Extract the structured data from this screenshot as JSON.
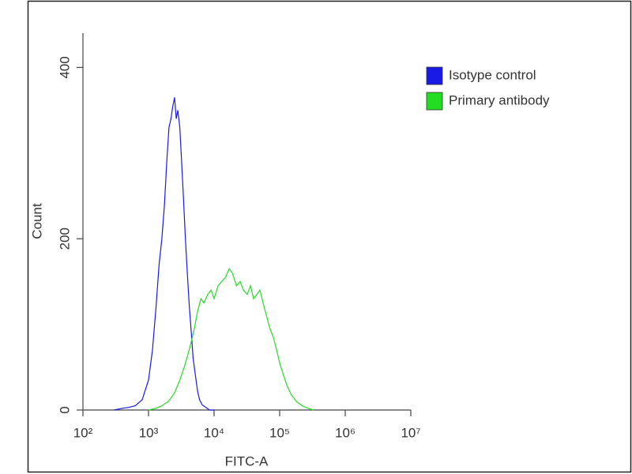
{
  "chart_data": {
    "type": "line",
    "xlabel": "FITC-A",
    "ylabel": "Count",
    "xscale": "log",
    "xlim": [
      100,
      10000000
    ],
    "xticks": [
      {
        "value": 100,
        "label": "10²"
      },
      {
        "value": 1000,
        "label": "10³"
      },
      {
        "value": 10000,
        "label": "10⁴"
      },
      {
        "value": 100000,
        "label": "10⁵"
      },
      {
        "value": 1000000,
        "label": "10⁶"
      },
      {
        "value": 10000000,
        "label": "10⁷"
      }
    ],
    "ylim": [
      0,
      440
    ],
    "yticks": [
      0,
      200,
      400
    ],
    "legend": "upper right",
    "series": [
      {
        "name": "Isotype control",
        "color": "#1a1ae6",
        "x": [
          300,
          400,
          500,
          630,
          800,
          1000,
          1150,
          1300,
          1450,
          1600,
          1750,
          1900,
          2050,
          2200,
          2350,
          2500,
          2650,
          2800,
          3000,
          3200,
          3400,
          3650,
          3900,
          4200,
          4500,
          4800,
          5200,
          5600,
          6000,
          6600,
          7500,
          8500,
          10000
        ],
        "values": [
          0,
          2,
          3,
          5,
          12,
          35,
          70,
          120,
          170,
          200,
          240,
          290,
          330,
          340,
          355,
          365,
          340,
          350,
          330,
          290,
          250,
          200,
          160,
          120,
          90,
          60,
          40,
          22,
          12,
          6,
          3,
          0,
          0
        ]
      },
      {
        "name": "Primary antibody",
        "color": "#22dd22",
        "x": [
          1000,
          1300,
          1600,
          2000,
          2500,
          3000,
          3500,
          4000,
          4500,
          5000,
          5600,
          6300,
          7000,
          8000,
          9000,
          10000,
          11500,
          13000,
          15000,
          17000,
          19000,
          22000,
          25000,
          28000,
          32000,
          36000,
          40000,
          45000,
          50000,
          56000,
          63000,
          71000,
          80000,
          90000,
          100000,
          115000,
          130000,
          150000,
          180000,
          220000,
          270000,
          330000
        ],
        "values": [
          0,
          2,
          5,
          10,
          20,
          35,
          50,
          65,
          80,
          95,
          115,
          130,
          125,
          135,
          140,
          130,
          145,
          150,
          155,
          165,
          160,
          145,
          150,
          140,
          135,
          145,
          130,
          135,
          140,
          125,
          110,
          95,
          85,
          70,
          55,
          40,
          28,
          18,
          10,
          5,
          2,
          0
        ]
      }
    ]
  }
}
